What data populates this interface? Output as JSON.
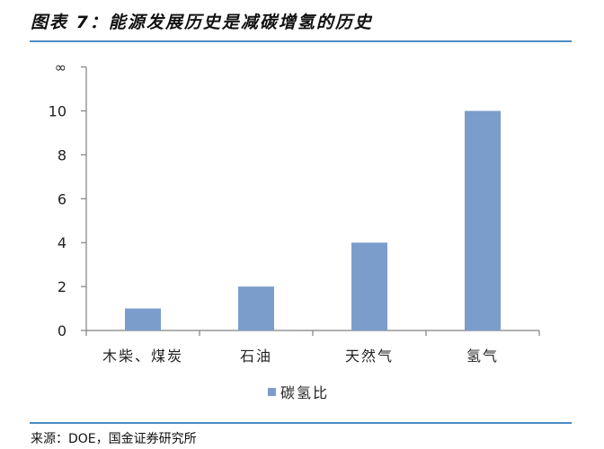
{
  "header": {
    "title": "图表 7：能源发展历史是减碳增氢的历史"
  },
  "footer": {
    "source": "来源：DOE，国金证券研究所"
  },
  "colors": {
    "bar": "#7b9dcc",
    "rule": "#4a8cc4",
    "axis": "#808080"
  },
  "chart_data": {
    "type": "bar",
    "title": "",
    "xlabel": "",
    "ylabel": "",
    "categories": [
      "木柴、煤炭",
      "石油",
      "天然气",
      "氢气"
    ],
    "series": [
      {
        "name": "碳氢比",
        "values": [
          1,
          2,
          4,
          10
        ]
      }
    ],
    "y_ticks": [
      "0",
      "2",
      "4",
      "6",
      "8",
      "10",
      "∞"
    ],
    "ylim": [
      0,
      12
    ],
    "grid": false,
    "legend_position": "bottom"
  }
}
